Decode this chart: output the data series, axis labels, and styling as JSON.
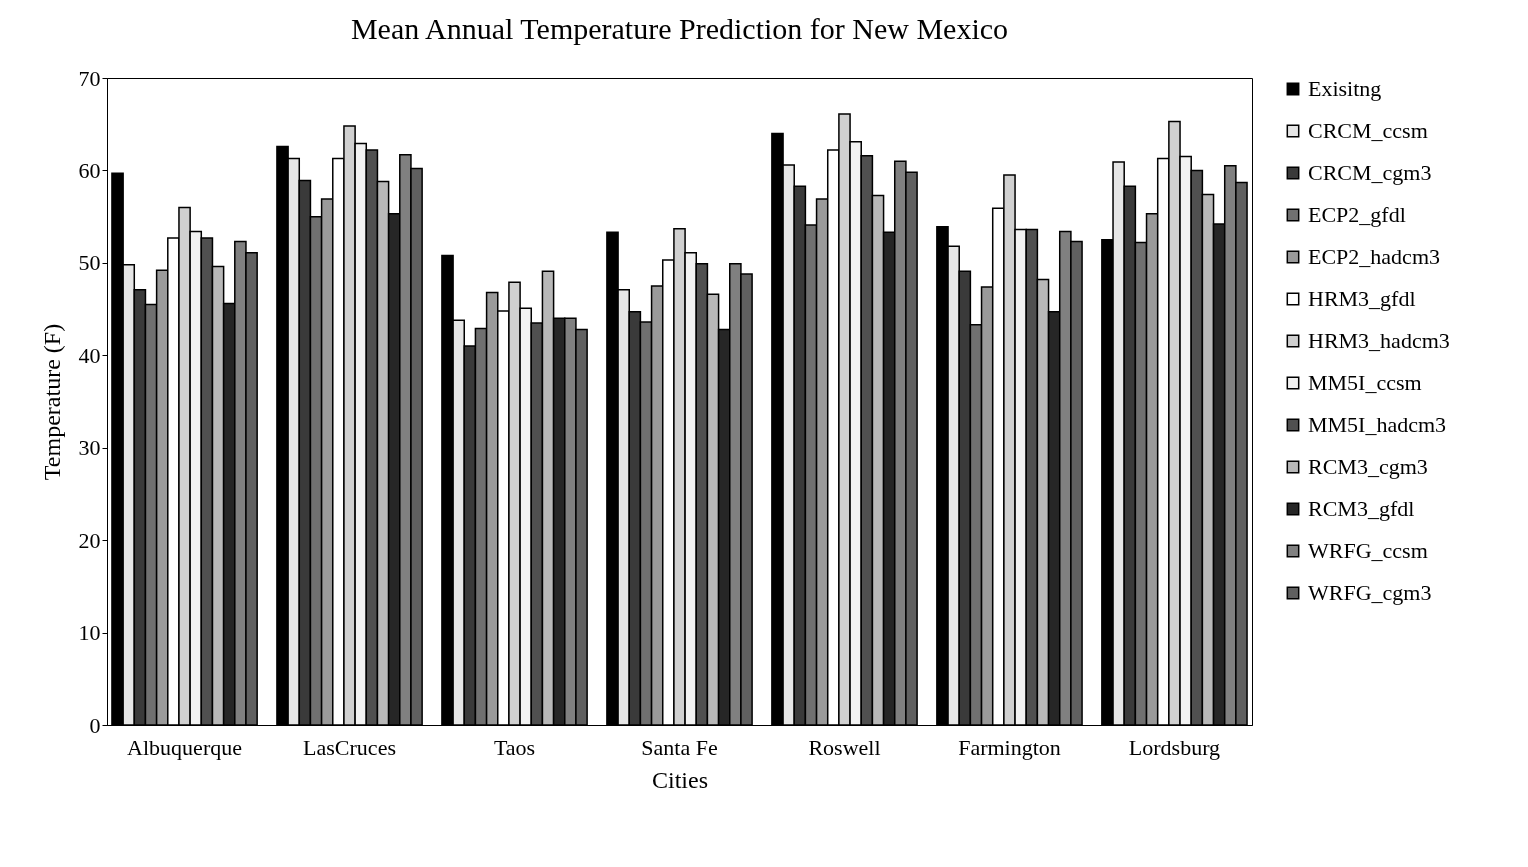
{
  "chart_data": {
    "type": "bar",
    "title": "Mean Annual  Temperature Prediction  for New Mexico",
    "xlabel": "Cities",
    "ylabel": "Temperature (F)",
    "categories": [
      "Albuquerque",
      "LasCruces",
      "Taos",
      "Santa Fe",
      "Roswell",
      "Farmington",
      "Lordsburg"
    ],
    "ylim": [
      0,
      70
    ],
    "yticks": [
      0,
      10,
      20,
      30,
      40,
      50,
      60,
      70
    ],
    "grid": false,
    "legend": "right",
    "series": [
      {
        "name": "Exisitng",
        "color": "#000000",
        "values": [
          59.7,
          62.6,
          50.8,
          53.3,
          64.0,
          53.9,
          52.5
        ]
      },
      {
        "name": "CRCM_ccsm",
        "color": "#e6e6e6",
        "values": [
          49.8,
          61.3,
          43.8,
          47.1,
          60.6,
          51.8,
          60.9
        ]
      },
      {
        "name": "CRCM_cgm3",
        "color": "#3a3a3a",
        "values": [
          47.1,
          58.9,
          41.0,
          44.7,
          58.3,
          49.1,
          58.3
        ]
      },
      {
        "name": "ECP2_gfdl",
        "color": "#707070",
        "values": [
          45.5,
          55.0,
          42.9,
          43.6,
          54.1,
          43.3,
          52.2
        ]
      },
      {
        "name": "ECP2_hadcm3",
        "color": "#9a9a9a",
        "values": [
          49.2,
          56.9,
          46.8,
          47.5,
          56.9,
          47.4,
          55.3
        ]
      },
      {
        "name": "HRM3_gfdl",
        "color": "#ffffff",
        "values": [
          52.7,
          61.3,
          44.8,
          50.3,
          62.2,
          55.9,
          61.3
        ]
      },
      {
        "name": "HRM3_hadcm3",
        "color": "#d0d0d0",
        "values": [
          56.0,
          64.8,
          47.9,
          53.7,
          66.1,
          59.5,
          65.3
        ]
      },
      {
        "name": "MM5I_ccsm",
        "color": "#f2f2f2",
        "values": [
          53.4,
          62.9,
          45.1,
          51.1,
          63.1,
          53.6,
          61.5
        ]
      },
      {
        "name": "MM5I_hadcm3",
        "color": "#505050",
        "values": [
          52.7,
          62.2,
          43.5,
          49.9,
          61.6,
          53.6,
          60.0
        ]
      },
      {
        "name": "RCM3_cgm3",
        "color": "#b8b8b8",
        "values": [
          49.6,
          58.8,
          49.1,
          46.6,
          57.3,
          48.2,
          57.4
        ]
      },
      {
        "name": "RCM3_gfdl",
        "color": "#262626",
        "values": [
          45.6,
          55.3,
          44.0,
          42.8,
          53.3,
          44.7,
          54.2
        ]
      },
      {
        "name": "WRFG_ccsm",
        "color": "#808080",
        "values": [
          52.3,
          61.7,
          44.0,
          49.9,
          61.0,
          53.4,
          60.5
        ]
      },
      {
        "name": "WRFG_cgm3",
        "color": "#606060",
        "values": [
          51.1,
          60.2,
          42.8,
          48.8,
          59.8,
          52.3,
          58.7
        ]
      }
    ]
  }
}
